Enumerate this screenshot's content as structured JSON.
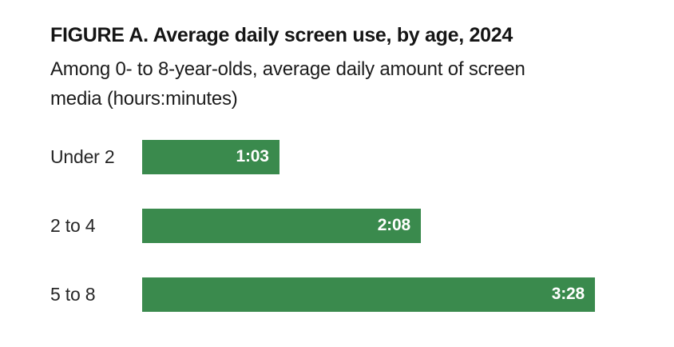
{
  "figure": {
    "title": "FIGURE A. Average daily screen use, by age, 2024",
    "subtitle": "Among 0- to 8-year-olds, average daily amount of screen\nmedia (hours:minutes)"
  },
  "chart_data": {
    "type": "bar",
    "orientation": "horizontal",
    "title": "FIGURE A. Average daily screen use, by age, 2024",
    "subtitle": "Among 0- to 8-year-olds, average daily amount of screen media (hours:minutes)",
    "units": "hours:minutes",
    "categories": [
      "Under 2",
      "2 to 4",
      "5 to 8"
    ],
    "values_minutes": [
      63,
      128,
      208
    ],
    "value_labels": [
      "1:03",
      "2:08",
      "3:28"
    ],
    "xlim_minutes": [
      0,
      208
    ],
    "grid": false,
    "legend": false,
    "axes_shown": false,
    "bar_color": "#3a8a4d",
    "value_label_color": "#ffffff",
    "text_color": "#1a1a1a",
    "background_color": "#ffffff"
  }
}
